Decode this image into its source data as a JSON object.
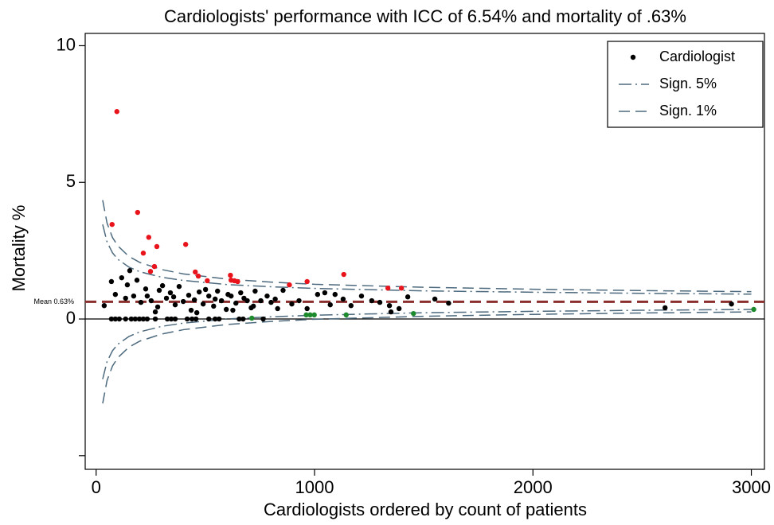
{
  "chart_data": {
    "type": "scatter",
    "title": "Cardiologists' performance with ICC of 6.54% and mortality of .63%",
    "xlabel": "Cardiologists ordered by count of patients",
    "ylabel": "Mortality %",
    "xlim": [
      -50,
      3060
    ],
    "ylim": [
      -5.5,
      10.45
    ],
    "xticks": [
      0,
      1000,
      2000,
      3000
    ],
    "yticks": [
      0,
      5,
      10
    ],
    "yticks_unlabeled": [
      -5
    ],
    "zero_line": true,
    "mean": {
      "value": 0.63,
      "label": "Mean 0.63%",
      "color": "#8b2e2e"
    },
    "legend_position": "top-right",
    "series": [
      {
        "name": "Cardiologist",
        "type": "scatter",
        "color": "#000000",
        "x": [
          70,
          88,
          106,
          135,
          161,
          179,
          198,
          216,
          234,
          271,
          326,
          344,
          362,
          417,
          439,
          457,
          516,
          545,
          563,
          655,
          673,
          765,
          37,
          70,
          117,
          143,
          154,
          172,
          187,
          205,
          227,
          252,
          282,
          304,
          322,
          340,
          362,
          380,
          399,
          424,
          435,
          472,
          490,
          516,
          538,
          556,
          574,
          596,
          618,
          640,
          662,
          692,
          710,
          728,
          754,
          783,
          820,
          831,
          856,
          896,
          929,
          966,
          1014,
          1047,
          1072,
          1094,
          1131,
          1167,
          1215,
          1262,
          1299,
          1343,
          1350,
          1387,
          1427,
          1551,
          1614,
          2605,
          2909,
          88,
          135,
          234,
          289,
          355,
          450,
          501,
          545,
          604,
          677,
          720,
          801,
          271,
          461,
          626
        ],
        "values": [
          0,
          0,
          0,
          0,
          0,
          0,
          0,
          0,
          0,
          0,
          0,
          0,
          0,
          0,
          0,
          0,
          0,
          0,
          0,
          0,
          0,
          0,
          0.49,
          1.37,
          1.51,
          1.25,
          1.77,
          0.84,
          1.42,
          0.61,
          1.1,
          0.67,
          0.44,
          1.22,
          0.76,
          0.96,
          0.52,
          1.19,
          0.64,
          0.87,
          0.32,
          0.99,
          0.55,
          0.84,
          0.47,
          1.02,
          0.67,
          0.35,
          0.84,
          0.58,
          0.96,
          0.67,
          0.41,
          1.02,
          0.67,
          0.84,
          0.73,
          0.38,
          1.05,
          0.55,
          0.67,
          0.38,
          0.9,
          0.96,
          0.52,
          0.9,
          0.73,
          0.49,
          0.84,
          0.67,
          0.61,
          0.49,
          0.26,
          0.38,
          0.81,
          0.73,
          0.58,
          0.41,
          0.55,
          0.9,
          0.76,
          0.84,
          1.05,
          0.81,
          0.7,
          1.08,
          0.73,
          0.9,
          0.76,
          0.47,
          0.61,
          0.26,
          0.23,
          0.32
        ]
      },
      {
        "type": "scatter",
        "color": "#e8131b",
        "x": [
          95,
          73,
          190,
          241,
          216,
          278,
          249,
          267,
          410,
          454,
          468,
          509,
          615,
          618,
          633,
          648,
          885,
          966,
          1134,
          1336,
          1398
        ],
        "values": [
          7.59,
          3.46,
          3.9,
          2.99,
          2.41,
          2.65,
          1.74,
          1.92,
          2.73,
          1.72,
          1.57,
          1.4,
          1.6,
          1.42,
          1.4,
          1.37,
          1.25,
          1.37,
          1.63,
          1.13,
          1.13
        ]
      },
      {
        "type": "scatter",
        "color": "#1e8a2e",
        "x": [
          713,
          962,
          980,
          999,
          1145,
          1453,
          3011
        ],
        "values": [
          0.03,
          0.15,
          0.15,
          0.15,
          0.15,
          0.2,
          0.35
        ]
      },
      {
        "name": "Sign. 5%",
        "type": "line",
        "dash": "long-dash-dot",
        "color": "#4d6a7e",
        "x": [
          30,
          50,
          75,
          100,
          150,
          200,
          300,
          400,
          600,
          800,
          1000,
          1500,
          2000,
          2500,
          3000
        ],
        "values": [
          3.46,
          2.82,
          2.42,
          2.18,
          1.9,
          1.73,
          1.53,
          1.41,
          1.26,
          1.18,
          1.12,
          1.03,
          0.98,
          0.94,
          0.91
        ],
        "lower_values": [
          -2.2,
          -1.56,
          -1.16,
          -0.92,
          -0.64,
          -0.47,
          -0.27,
          -0.15,
          0,
          0.08,
          0.14,
          0.23,
          0.28,
          0.32,
          0.35
        ]
      },
      {
        "name": "Sign. 1%",
        "type": "line",
        "dash": "dash",
        "color": "#4d6a7e",
        "x": [
          30,
          50,
          75,
          100,
          150,
          200,
          300,
          400,
          600,
          800,
          1000,
          1500,
          2000,
          2500,
          3000
        ],
        "values": [
          4.35,
          3.51,
          2.98,
          2.67,
          2.29,
          2.07,
          1.81,
          1.65,
          1.46,
          1.35,
          1.27,
          1.16,
          1.09,
          1.04,
          1
        ],
        "lower_values": [
          -3.09,
          -2.25,
          -1.72,
          -1.41,
          -1.03,
          -0.81,
          -0.55,
          -0.39,
          -0.2,
          -0.09,
          -0.01,
          0.1,
          0.17,
          0.22,
          0.26
        ]
      }
    ]
  }
}
